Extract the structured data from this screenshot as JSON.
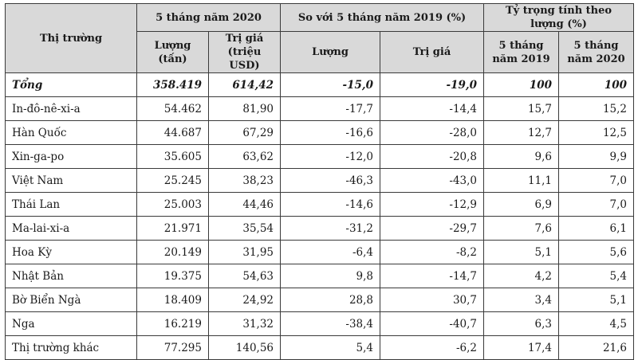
{
  "headers": {
    "market": "Thị trường",
    "group1": "5 tháng năm 2020",
    "group2": "So với 5 tháng năm 2019 (%)",
    "group3": "Tỷ trọng tính theo lượng (%)",
    "qty_tons": "Lượng (tấn)",
    "value_musd": "Trị giá (triệu USD)",
    "qty": "Lượng",
    "value": "Trị giá",
    "y2019": "5 tháng năm 2019",
    "y2020": "5 tháng năm 2020"
  },
  "rows": [
    {
      "market": "Tổng",
      "qty": "358.419",
      "value": "614,42",
      "chg_qty": "-15,0",
      "chg_value": "-19,0",
      "share_2019": "100",
      "share_2020": "100"
    },
    {
      "market": "In-đô-nê-xi-a",
      "qty": "54.462",
      "value": "81,90",
      "chg_qty": "-17,7",
      "chg_value": "-14,4",
      "share_2019": "15,7",
      "share_2020": "15,2"
    },
    {
      "market": "Hàn Quốc",
      "qty": "44.687",
      "value": "67,29",
      "chg_qty": "-16,6",
      "chg_value": "-28,0",
      "share_2019": "12,7",
      "share_2020": "12,5"
    },
    {
      "market": "Xin-ga-po",
      "qty": "35.605",
      "value": "63,62",
      "chg_qty": "-12,0",
      "chg_value": "-20,8",
      "share_2019": "9,6",
      "share_2020": "9,9"
    },
    {
      "market": "Việt Nam",
      "qty": "25.245",
      "value": "38,23",
      "chg_qty": "-46,3",
      "chg_value": "-43,0",
      "share_2019": "11,1",
      "share_2020": "7,0"
    },
    {
      "market": "Thái Lan",
      "qty": "25.003",
      "value": "44,46",
      "chg_qty": "-14,6",
      "chg_value": "-12,9",
      "share_2019": "6,9",
      "share_2020": "7,0"
    },
    {
      "market": "Ma-lai-xi-a",
      "qty": "21.971",
      "value": "35,54",
      "chg_qty": "-31,2",
      "chg_value": "-29,7",
      "share_2019": "7,6",
      "share_2020": "6,1"
    },
    {
      "market": "Hoa Kỳ",
      "qty": "20.149",
      "value": "31,95",
      "chg_qty": "-6,4",
      "chg_value": "-8,2",
      "share_2019": "5,1",
      "share_2020": "5,6"
    },
    {
      "market": "Nhật Bản",
      "qty": "19.375",
      "value": "54,63",
      "chg_qty": "9,8",
      "chg_value": "-14,7",
      "share_2019": "4,2",
      "share_2020": "5,4"
    },
    {
      "market": "Bờ Biển Ngà",
      "qty": "18.409",
      "value": "24,92",
      "chg_qty": "28,8",
      "chg_value": "30,7",
      "share_2019": "3,4",
      "share_2020": "5,1"
    },
    {
      "market": "Nga",
      "qty": "16.219",
      "value": "31,32",
      "chg_qty": "-38,4",
      "chg_value": "-40,7",
      "share_2019": "6,3",
      "share_2020": "4,5"
    },
    {
      "market": "Thị trường khác",
      "qty": "77.295",
      "value": "140,56",
      "chg_qty": "5,4",
      "chg_value": "-6,2",
      "share_2019": "17,4",
      "share_2020": "21,6"
    }
  ]
}
